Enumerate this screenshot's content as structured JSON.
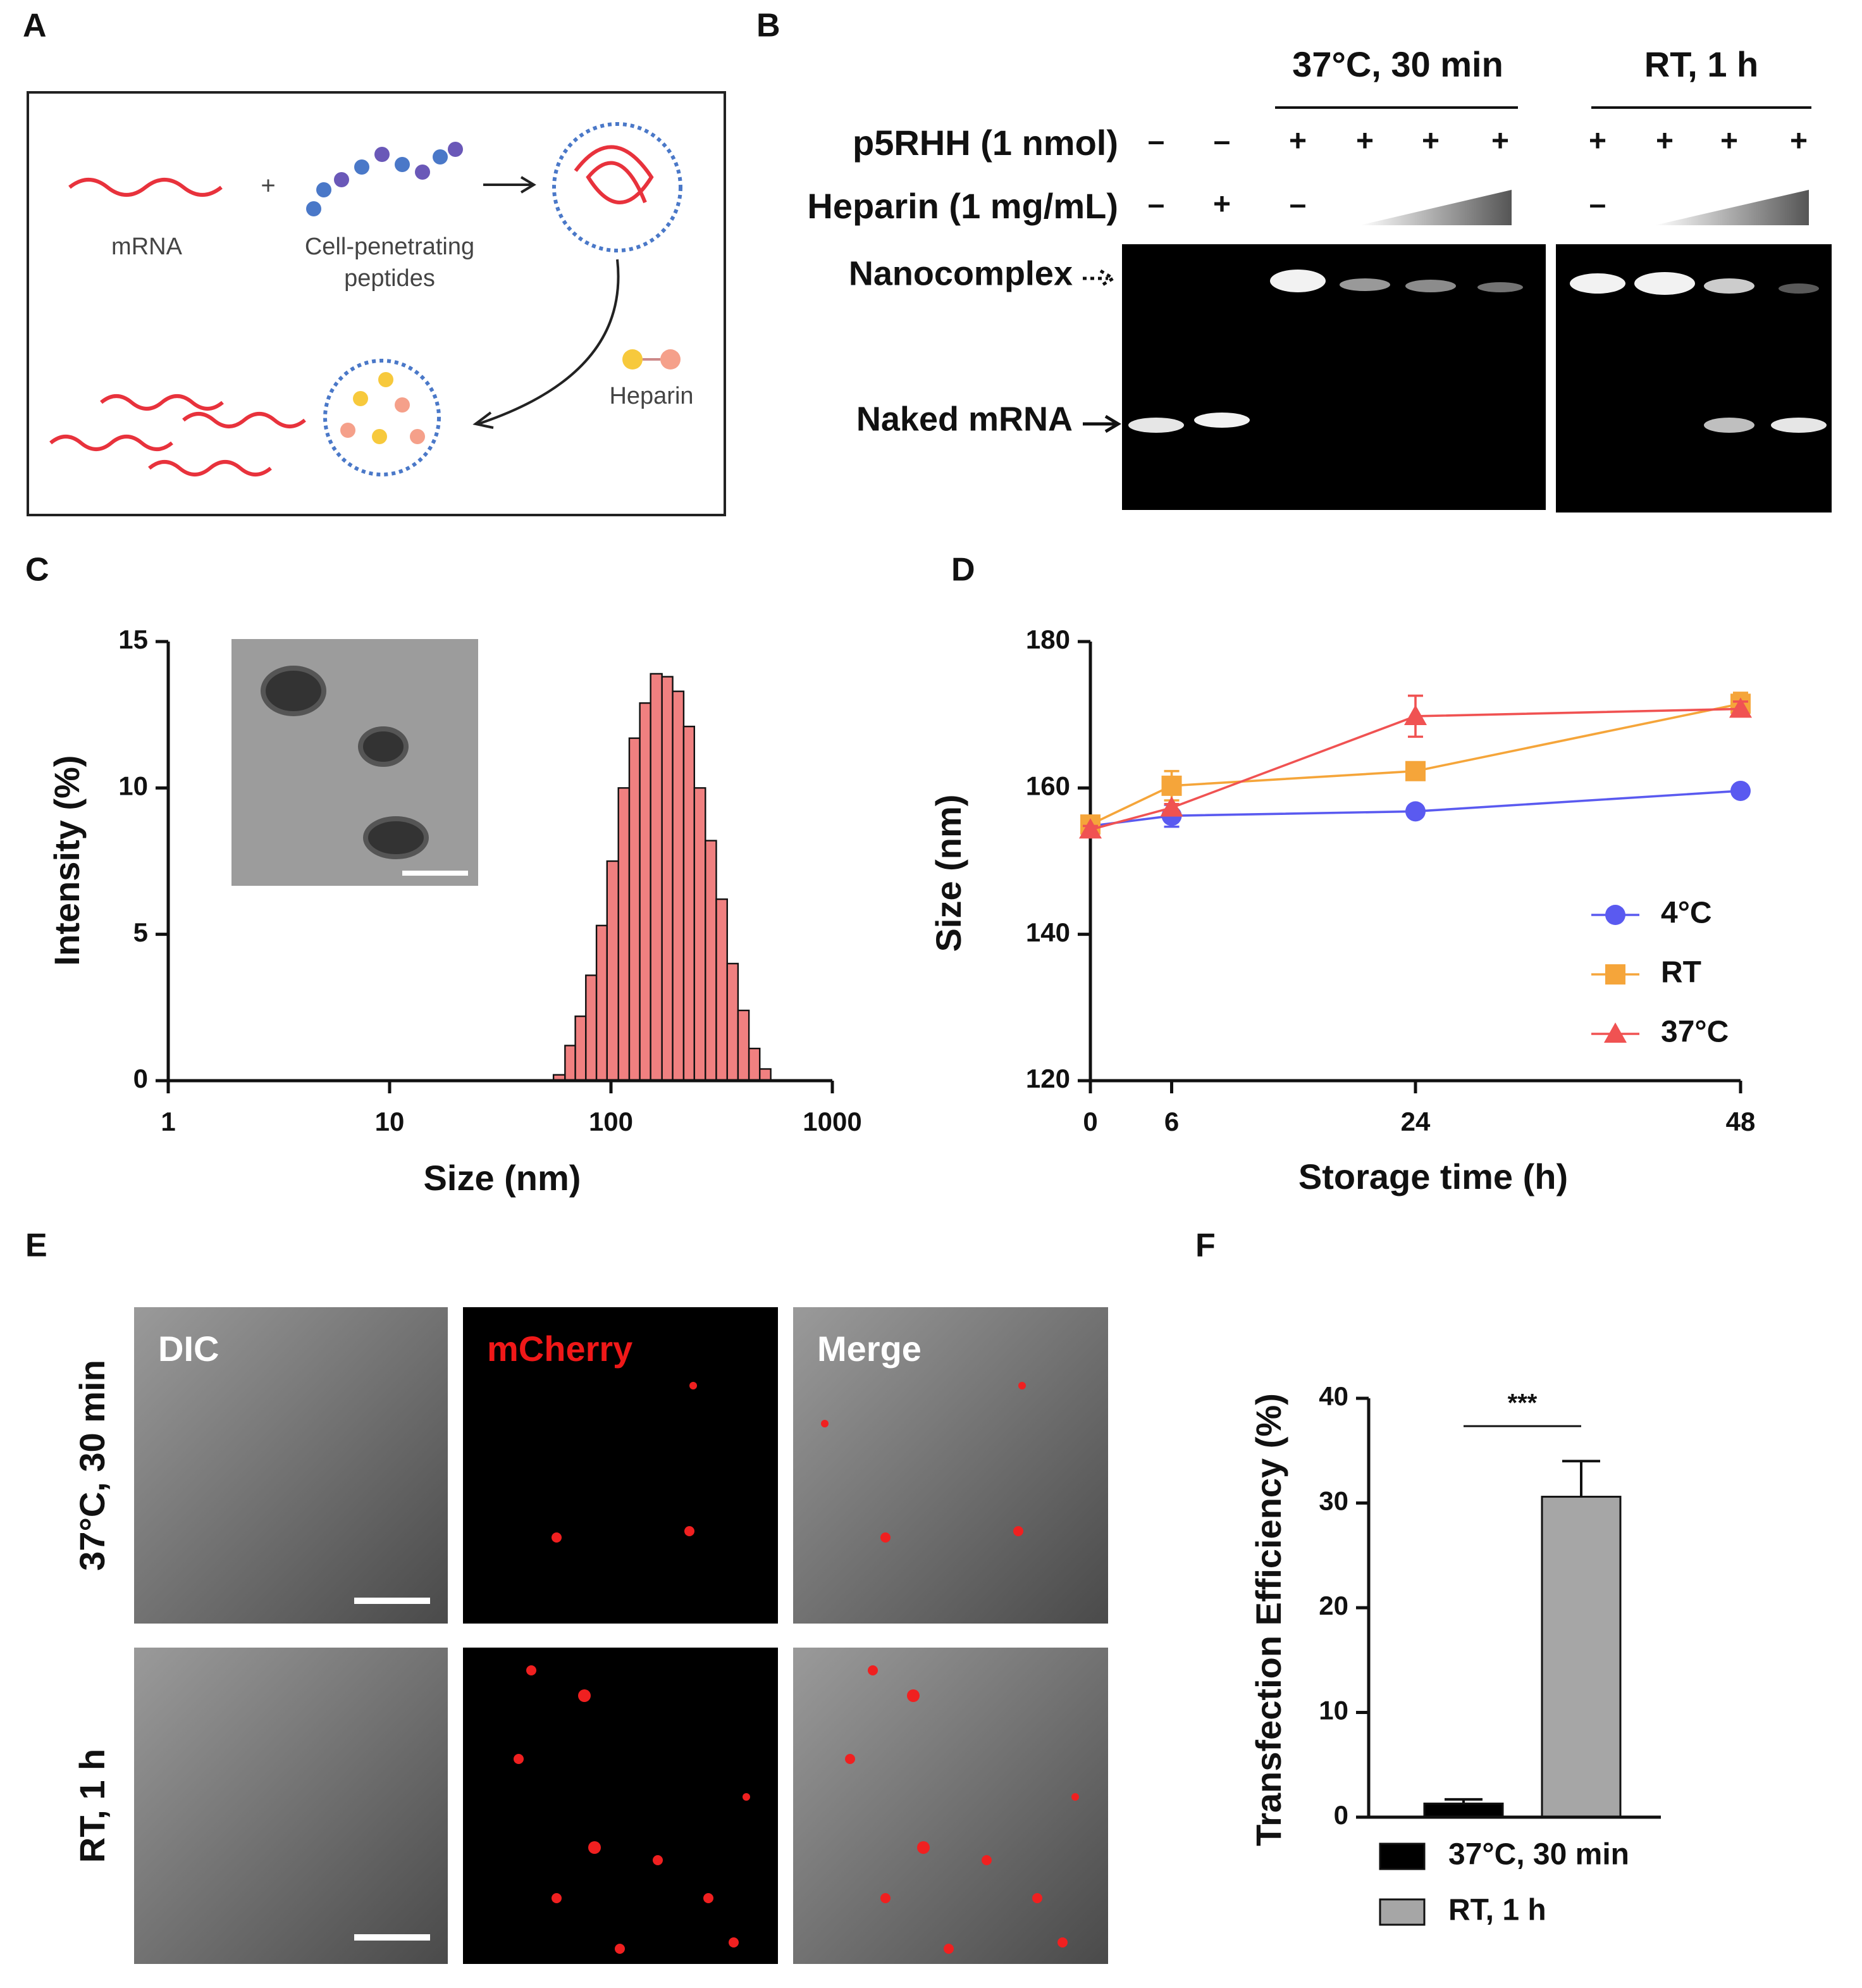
{
  "panels": {
    "labels": [
      "A",
      "B",
      "C",
      "D",
      "E",
      "F"
    ]
  },
  "panel_a": {
    "mrna": "mRNA",
    "peptides": [
      "Cell-penetrating",
      "peptides"
    ],
    "heparin": "Heparin"
  },
  "panel_b": {
    "conditions": [
      "37°C, 30 min",
      "RT, 1 h"
    ],
    "rows": [
      "p5RHH (1 nmol)",
      "Heparin (1 mg/mL)"
    ],
    "p5rhh": [
      "–",
      "–",
      "+",
      "+",
      "+",
      "+",
      "+",
      "+",
      "+",
      "+"
    ],
    "heparin": [
      "–",
      "+",
      "–",
      null,
      null,
      null,
      "–",
      null,
      null,
      null
    ],
    "bands": [
      "Nanocomplex",
      "Naked mRNA"
    ]
  },
  "panel_e": {
    "rows": [
      "37°C, 30 min",
      "RT, 1 h"
    ],
    "channels": [
      "DIC",
      "mCherry",
      "Merge"
    ]
  },
  "chart_data": [
    {
      "type": "histogram",
      "x_label": "Size (nm)",
      "y_label": "Intensity (%)",
      "bins": [
        55,
        62,
        69,
        77,
        86,
        96,
        108,
        121,
        135,
        151,
        170,
        190,
        213,
        238,
        267,
        299,
        335,
        375,
        420,
        470,
        527
      ],
      "values": [
        0.2,
        1.2,
        2.2,
        3.6,
        5.3,
        7.5,
        10.0,
        11.7,
        12.9,
        13.9,
        13.8,
        13.3,
        12.1,
        10.0,
        8.2,
        6.2,
        4.0,
        2.4,
        1.1,
        0.4
      ],
      "color": "#f08080",
      "xscale": "log",
      "xlim": [
        1,
        1000
      ],
      "xticks": [
        1,
        10,
        100,
        1000
      ],
      "ylim": [
        0,
        15
      ],
      "yticks": [
        0,
        5,
        10,
        15
      ]
    },
    {
      "type": "line",
      "x_label": "Storage time (h)",
      "y_label": "Size (nm)",
      "x": [
        0,
        6,
        24,
        48
      ],
      "xlim": [
        0,
        48
      ],
      "xticks": [
        0,
        6,
        24,
        48
      ],
      "ylim": [
        120,
        180
      ],
      "yticks": [
        120,
        140,
        160,
        180
      ],
      "legend": "right",
      "series": [
        {
          "name": "4°C",
          "color": "#5a5af0",
          "marker": "circle",
          "values": [
            154.8,
            156.2,
            156.8,
            159.6
          ],
          "errors": [
            0.5,
            1.5,
            0.5,
            0.5
          ]
        },
        {
          "name": "RT",
          "color": "#f5a53a",
          "marker": "square",
          "values": [
            155.0,
            160.3,
            162.3,
            171.5
          ],
          "errors": [
            0.5,
            2.0,
            0.5,
            1.5
          ]
        },
        {
          "name": "37°C",
          "color": "#f05252",
          "marker": "triangle",
          "values": [
            154.3,
            157.3,
            169.8,
            170.8
          ],
          "errors": [
            0.5,
            0.5,
            2.8,
            1.0
          ]
        }
      ]
    },
    {
      "type": "bar",
      "y_label": "Transfection Efficiency (%)",
      "annotation": "***",
      "ylim": [
        0,
        40
      ],
      "yticks": [
        0,
        10,
        20,
        30,
        40
      ],
      "series": [
        {
          "name": "37°C, 30 min",
          "color": "#000000",
          "values": [
            1.3
          ],
          "errors": [
            0.4
          ]
        },
        {
          "name": "RT, 1 h",
          "color": "#a6a6a6",
          "values": [
            30.6
          ],
          "errors": [
            3.4
          ]
        }
      ]
    }
  ]
}
